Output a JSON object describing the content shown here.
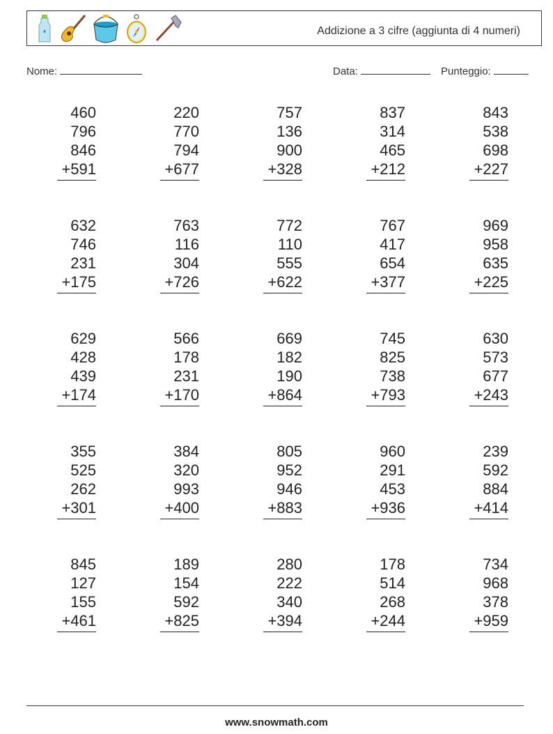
{
  "header": {
    "title": "Addizione a 3 cifre (aggiunta di 4 numeri)",
    "icons": [
      "water-bottle-icon",
      "guitar-icon",
      "bucket-icon",
      "compass-icon",
      "axe-icon"
    ]
  },
  "fields": {
    "name_label": "Nome:",
    "date_label": "Data:",
    "score_label": "Punteggio:"
  },
  "problems": [
    [
      [
        "460",
        "796",
        "846",
        "+591"
      ],
      [
        "220",
        "770",
        "794",
        "+677"
      ],
      [
        "757",
        "136",
        "900",
        "+328"
      ],
      [
        "837",
        "314",
        "465",
        "+212"
      ],
      [
        "843",
        "538",
        "698",
        "+227"
      ]
    ],
    [
      [
        "632",
        "746",
        "231",
        "+175"
      ],
      [
        "763",
        "116",
        "304",
        "+726"
      ],
      [
        "772",
        "110",
        "555",
        "+622"
      ],
      [
        "767",
        "417",
        "654",
        "+377"
      ],
      [
        "969",
        "958",
        "635",
        "+225"
      ]
    ],
    [
      [
        "629",
        "428",
        "439",
        "+174"
      ],
      [
        "566",
        "178",
        "231",
        "+170"
      ],
      [
        "669",
        "182",
        "190",
        "+864"
      ],
      [
        "745",
        "825",
        "738",
        "+793"
      ],
      [
        "630",
        "573",
        "677",
        "+243"
      ]
    ],
    [
      [
        "355",
        "525",
        "262",
        "+301"
      ],
      [
        "384",
        "320",
        "993",
        "+400"
      ],
      [
        "805",
        "952",
        "946",
        "+883"
      ],
      [
        "960",
        "291",
        "453",
        "+936"
      ],
      [
        "239",
        "592",
        "884",
        "+414"
      ]
    ],
    [
      [
        "845",
        "127",
        "155",
        "+461"
      ],
      [
        "189",
        "154",
        "592",
        "+825"
      ],
      [
        "280",
        "222",
        "340",
        "+394"
      ],
      [
        "178",
        "514",
        "268",
        "+244"
      ],
      [
        "734",
        "968",
        "378",
        "+959"
      ]
    ]
  ],
  "footer": {
    "text": "www.snowmath.com"
  }
}
